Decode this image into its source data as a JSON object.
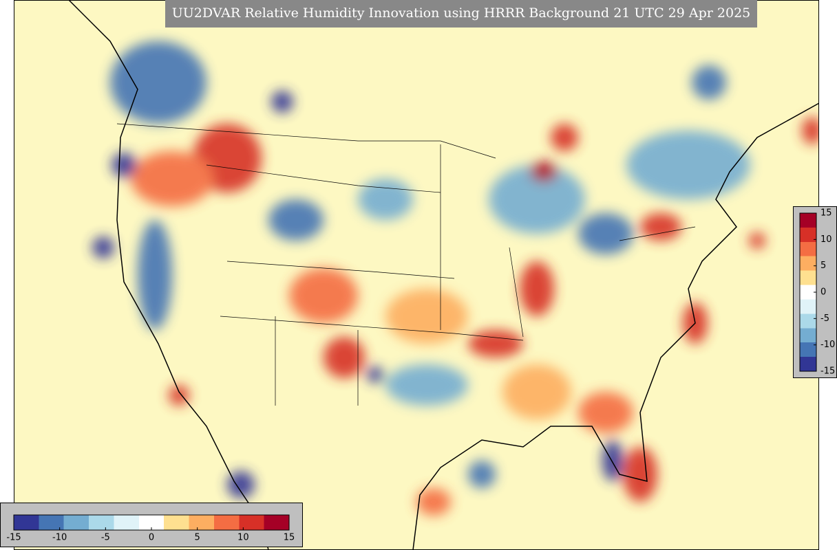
{
  "title": "UU2DVAR Relative Humidity Innovation using HRRR Background 21 UTC 29 Apr 2025",
  "colorbars": [
    {
      "orientation": "vertical",
      "lim": [
        -15,
        15
      ],
      "ticks": [
        15,
        10,
        5,
        0,
        -5,
        -10,
        -15
      ],
      "colors": [
        "#313695",
        "#4575b4",
        "#74add1",
        "#abd9e9",
        "#e0f3f8",
        "#ffffff",
        "#fee090",
        "#fdae61",
        "#f46d43",
        "#d73027",
        "#a50026"
      ]
    },
    {
      "orientation": "horizontal",
      "lim": [
        -15,
        15
      ],
      "ticks": [
        -15,
        -10,
        -5,
        0,
        5,
        10,
        15
      ],
      "colors": [
        "#313695",
        "#4575b4",
        "#74add1",
        "#abd9e9",
        "#e0f3f8",
        "#ffffff",
        "#fee090",
        "#fdae61",
        "#f46d43",
        "#d73027",
        "#a50026"
      ]
    }
  ]
}
